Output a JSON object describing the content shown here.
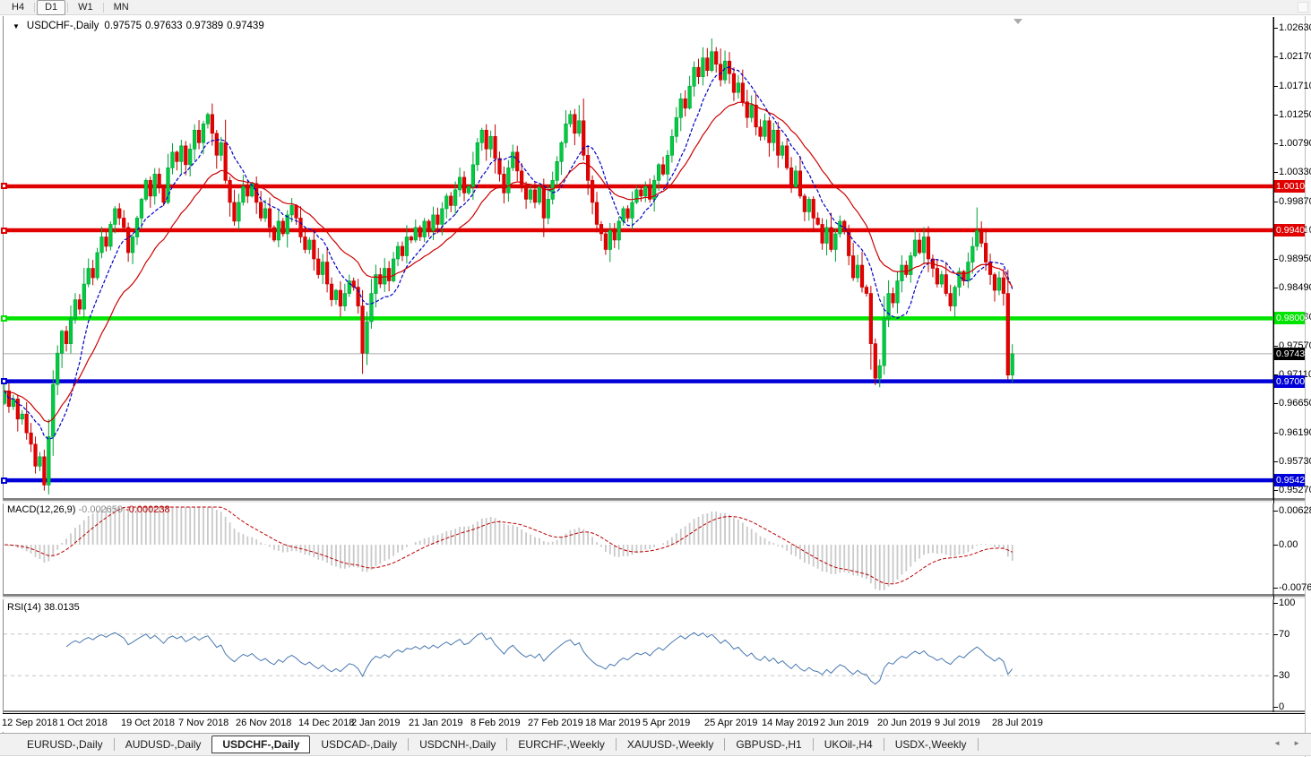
{
  "toolbar": {
    "timeframes": [
      {
        "label": "H4",
        "active": false
      },
      {
        "label": "D1",
        "active": true
      },
      {
        "label": "W1",
        "active": false
      },
      {
        "label": "MN",
        "active": false
      }
    ]
  },
  "icons": {
    "symbol_dropdown": "▼",
    "tab_scroll_left": "◄",
    "tab_scroll_right": "►"
  },
  "chart": {
    "title_symbol": "USDCHF-,Daily",
    "ohlc": {
      "open": "0.97575",
      "high": "0.97633",
      "low": "0.97389",
      "close": "0.97439"
    },
    "current_price_label": "0.97439",
    "price_axis_top_tick": 1.0263,
    "price_axis_step": 0.0046,
    "price_axis_tick_count": 17,
    "hlines": [
      {
        "label": "1.00106",
        "price": 1.00106,
        "color": "#e00000"
      },
      {
        "label": "0.99406",
        "price": 0.99406,
        "color": "#e00000"
      },
      {
        "label": "0.98004",
        "price": 0.98004,
        "color": "#00e400"
      },
      {
        "label": "0.97001",
        "price": 0.97001,
        "color": "#0000d8"
      },
      {
        "label": "0.95425",
        "price": 0.95425,
        "color": "#0000d8"
      }
    ],
    "date_labels": [
      {
        "text": "12 Sep 2018",
        "i": 0
      },
      {
        "text": "1 Oct 2018",
        "i": 13
      },
      {
        "text": "19 Oct 2018",
        "i": 27
      },
      {
        "text": "7 Nov 2018",
        "i": 40
      },
      {
        "text": "26 Nov 2018",
        "i": 53
      },
      {
        "text": "14 Dec 2018",
        "i": 67
      },
      {
        "text": "2 Jan 2019",
        "i": 79
      },
      {
        "text": "21 Jan 2019",
        "i": 92
      },
      {
        "text": "8 Feb 2019",
        "i": 106
      },
      {
        "text": "27 Feb 2019",
        "i": 119
      },
      {
        "text": "18 Mar 2019",
        "i": 132
      },
      {
        "text": "5 Apr 2019",
        "i": 145
      },
      {
        "text": "25 Apr 2019",
        "i": 159
      },
      {
        "text": "14 May 2019",
        "i": 172
      },
      {
        "text": "2 Jun 2019",
        "i": 185
      },
      {
        "text": "20 Jun 2019",
        "i": 198
      },
      {
        "text": "9 Jul 2019",
        "i": 211
      },
      {
        "text": "28 Jul 2019",
        "i": 224
      }
    ]
  },
  "macd_panel": {
    "name": "MACD(12,26,9)",
    "value_main": "-0.002659",
    "value_signal": "-0.000238",
    "axis_max_label": "0.006286",
    "axis_zero_label": "0.00",
    "axis_min_label": "-0.00762",
    "scale_max": 0.006286,
    "scale_min": -0.00762
  },
  "rsi_panel": {
    "name": "RSI(14)",
    "value": "38.0135",
    "axis_labels": [
      "100",
      "70",
      "30",
      "0"
    ],
    "levels": [
      70,
      30
    ]
  },
  "tabs": {
    "items": [
      {
        "label": "EURUSD-,Daily",
        "active": false
      },
      {
        "label": "AUDUSD-,Daily",
        "active": false
      },
      {
        "label": "USDCHF-,Daily",
        "active": true
      },
      {
        "label": "USDCAD-,Daily",
        "active": false
      },
      {
        "label": "USDCNH-,Daily",
        "active": false
      },
      {
        "label": "EURCHF-,Weekly",
        "active": false
      },
      {
        "label": "XAUUSD-,Weekly",
        "active": false
      },
      {
        "label": "GBPUSD-,H1",
        "active": false
      },
      {
        "label": "UKOil-,H4",
        "active": false
      },
      {
        "label": "USDX-,Weekly",
        "active": false
      }
    ]
  },
  "chart_data": {
    "type": "candlestick-with-indicators",
    "symbol": "USDCHF",
    "timeframe": "Daily",
    "price_range": [
      0.9526,
      1.0263
    ],
    "closes": [
      0.9685,
      0.966,
      0.9672,
      0.964,
      0.9648,
      0.9618,
      0.96,
      0.9565,
      0.958,
      0.9535,
      0.9612,
      0.9695,
      0.9745,
      0.978,
      0.976,
      0.98,
      0.983,
      0.9815,
      0.9855,
      0.988,
      0.9865,
      0.9905,
      0.993,
      0.9915,
      0.995,
      0.9975,
      0.996,
      0.9945,
      0.9905,
      0.993,
      0.996,
      0.999,
      1.002,
      0.9995,
      1.003,
      1.001,
      0.9985,
      1.004,
      1.0065,
      1.005,
      1.0075,
      1.0045,
      1.007,
      1.01,
      1.008,
      1.011,
      1.0125,
      1.0095,
      1.006,
      1.008,
      1.002,
      0.9985,
      0.9955,
      0.9985,
      1.001,
      0.9995,
      1.0015,
      0.9985,
      0.996,
      0.9975,
      0.9945,
      0.9925,
      0.9955,
      0.9935,
      0.9965,
      0.998,
      0.996,
      0.993,
      0.991,
      0.9925,
      0.9895,
      0.987,
      0.989,
      0.9855,
      0.983,
      0.9845,
      0.982,
      0.984,
      0.986,
      0.985,
      0.982,
      0.9745,
      0.9795,
      0.984,
      0.987,
      0.9855,
      0.988,
      0.986,
      0.9895,
      0.9915,
      0.99,
      0.993,
      0.9925,
      0.9945,
      0.993,
      0.9955,
      0.994,
      0.9965,
      0.995,
      0.9975,
      0.9995,
      0.998,
      1.0005,
      1.0025,
      1.0,
      1.001,
      1.0045,
      1.008,
      1.01,
      1.007,
      1.009,
      1.0055,
      1.003,
      1.0,
      1.004,
      1.0065,
      1.0035,
      1.001,
      0.999,
      1.0005,
      0.9985,
      1.001,
      0.996,
      0.999,
      1.002,
      1.005,
      1.008,
      1.011,
      1.0125,
      1.0095,
      1.0115,
      1.006,
      1.002,
      0.9985,
      0.995,
      0.9935,
      0.991,
      0.994,
      0.9925,
      0.9955,
      0.9975,
      0.996,
      0.9985,
      1.0005,
      0.9995,
      1.001,
      0.999,
      1.002,
      1.0045,
      1.003,
      1.006,
      1.009,
      1.012,
      1.015,
      1.0135,
      1.017,
      1.02,
      1.0185,
      1.0215,
      1.0195,
      1.0225,
      1.0205,
      1.018,
      1.021,
      1.019,
      1.016,
      1.0175,
      1.0145,
      1.012,
      1.014,
      1.0105,
      1.009,
      1.0115,
      1.008,
      1.01,
      1.006,
      1.0075,
      1.004,
      1.001,
      1.0035,
      0.9995,
      0.997,
      0.999,
      0.996,
      0.995,
      0.992,
      0.9945,
      0.991,
      0.9935,
      0.9955,
      0.994,
      0.99,
      0.9865,
      0.9885,
      0.985,
      0.984,
      0.976,
      0.9705,
      0.9725,
      0.98,
      0.984,
      0.9825,
      0.986,
      0.9885,
      0.987,
      0.99,
      0.9925,
      0.9905,
      0.993,
      0.9895,
      0.988,
      0.9855,
      0.987,
      0.984,
      0.982,
      0.985,
      0.9875,
      0.986,
      0.989,
      0.9915,
      0.994,
      0.992,
      0.989,
      0.987,
      0.9845,
      0.9865,
      0.984,
      0.971,
      0.9744
    ],
    "first_open": 0.9665,
    "wick_overrides": {
      "9": {
        "low": 0.9526
      },
      "46": {
        "high": 1.0128
      },
      "81": {
        "low": 0.9712
      },
      "130": {
        "high": 1.014
      },
      "158": {
        "high": 1.0232
      },
      "162": {
        "high": 1.023
      },
      "197": {
        "low": 0.9694
      },
      "220": {
        "high": 0.9977
      },
      "227": {
        "low": 0.9703
      }
    },
    "ma_fast_period": 9,
    "ma_slow_period": 21,
    "macd_params": [
      12,
      26,
      9
    ],
    "rsi_period": 14,
    "current_price": 0.97439,
    "colors": {
      "up_fill": "#00cc41",
      "up_stroke": "#00a035",
      "down_fill": "#e60000",
      "down_stroke": "#c00000",
      "ma_fast": "#0000c8",
      "ma_slow": "#cc0000",
      "macd_hist": "#c9c9c9",
      "macd_signal": "#bb0000",
      "rsi_line": "#4878b0",
      "level_dash": "#c4c4c4",
      "current_line": "#ababab"
    }
  }
}
